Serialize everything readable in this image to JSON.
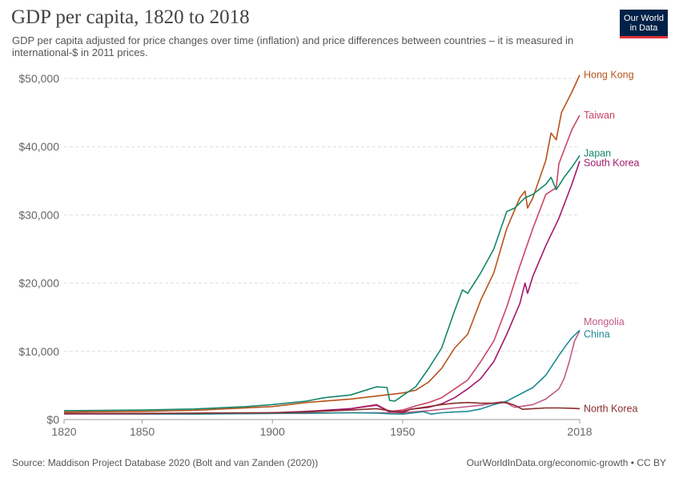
{
  "header": {
    "title": "GDP per capita, 1820 to 2018",
    "subtitle": "GDP per capita adjusted for price changes over time (inflation) and price differences between countries – it is measured in international-$ in 2011 prices.",
    "logo_line1": "Our World",
    "logo_line2": "in Data"
  },
  "footer": {
    "source": "Source: Maddison Project Database 2020 (Bolt and van Zanden (2020))",
    "link": "OurWorldInData.org/economic-growth • CC BY"
  },
  "chart_data": {
    "type": "line",
    "title": "GDP per capita, 1820 to 2018",
    "xlim": [
      1820,
      2018
    ],
    "ylim": [
      0,
      50000
    ],
    "x_ticks": [
      1820,
      1850,
      1900,
      1950,
      2018
    ],
    "y_ticks": [
      0,
      10000,
      20000,
      30000,
      40000,
      50000
    ],
    "y_tick_labels": [
      "$0",
      "$10,000",
      "$20,000",
      "$30,000",
      "$40,000",
      "$50,000"
    ],
    "grid": "horizontal dashed",
    "legend": "inline labels at right end",
    "series": [
      {
        "name": "Hong Kong",
        "color": "#b8521c",
        "points": [
          [
            1820,
            1100
          ],
          [
            1850,
            1200
          ],
          [
            1870,
            1350
          ],
          [
            1900,
            1900
          ],
          [
            1913,
            2500
          ],
          [
            1930,
            3000
          ],
          [
            1950,
            3900
          ],
          [
            1955,
            4300
          ],
          [
            1960,
            5500
          ],
          [
            1965,
            7500
          ],
          [
            1970,
            10500
          ],
          [
            1975,
            12500
          ],
          [
            1980,
            17500
          ],
          [
            1985,
            21500
          ],
          [
            1990,
            28000
          ],
          [
            1995,
            32500
          ],
          [
            1997,
            33500
          ],
          [
            1998,
            31000
          ],
          [
            2000,
            32500
          ],
          [
            2005,
            38000
          ],
          [
            2007,
            42000
          ],
          [
            2009,
            41000
          ],
          [
            2011,
            45000
          ],
          [
            2015,
            48000
          ],
          [
            2018,
            50500
          ]
        ]
      },
      {
        "name": "Taiwan",
        "color": "#c84563",
        "points": [
          [
            1820,
            800
          ],
          [
            1850,
            800
          ],
          [
            1870,
            850
          ],
          [
            1900,
            1000
          ],
          [
            1913,
            1100
          ],
          [
            1930,
            1600
          ],
          [
            1940,
            2200
          ],
          [
            1945,
            1200
          ],
          [
            1950,
            1400
          ],
          [
            1955,
            2000
          ],
          [
            1960,
            2500
          ],
          [
            1965,
            3200
          ],
          [
            1970,
            4500
          ],
          [
            1975,
            5800
          ],
          [
            1980,
            8500
          ],
          [
            1985,
            11500
          ],
          [
            1990,
            16500
          ],
          [
            1995,
            22500
          ],
          [
            2000,
            28000
          ],
          [
            2005,
            33000
          ],
          [
            2009,
            34000
          ],
          [
            2010,
            37500
          ],
          [
            2015,
            42500
          ],
          [
            2018,
            44600
          ]
        ]
      },
      {
        "name": "Japan",
        "color": "#14876b",
        "points": [
          [
            1820,
            1300
          ],
          [
            1850,
            1400
          ],
          [
            1870,
            1550
          ],
          [
            1890,
            1900
          ],
          [
            1900,
            2200
          ],
          [
            1913,
            2700
          ],
          [
            1920,
            3200
          ],
          [
            1930,
            3600
          ],
          [
            1935,
            4200
          ],
          [
            1940,
            4800
          ],
          [
            1944,
            4700
          ],
          [
            1945,
            2800
          ],
          [
            1947,
            2700
          ],
          [
            1950,
            3500
          ],
          [
            1955,
            4800
          ],
          [
            1960,
            7500
          ],
          [
            1965,
            10500
          ],
          [
            1970,
            16000
          ],
          [
            1973,
            19000
          ],
          [
            1975,
            18500
          ],
          [
            1980,
            21500
          ],
          [
            1985,
            25000
          ],
          [
            1990,
            30500
          ],
          [
            1993,
            31000
          ],
          [
            1997,
            32500
          ],
          [
            2000,
            33000
          ],
          [
            2005,
            34500
          ],
          [
            2007,
            35500
          ],
          [
            2009,
            33700
          ],
          [
            2012,
            35500
          ],
          [
            2015,
            37000
          ],
          [
            2018,
            38700
          ]
        ]
      },
      {
        "name": "South Korea",
        "color": "#a3186c",
        "points": [
          [
            1820,
            900
          ],
          [
            1850,
            900
          ],
          [
            1870,
            900
          ],
          [
            1900,
            1000
          ],
          [
            1913,
            1200
          ],
          [
            1930,
            1600
          ],
          [
            1940,
            2100
          ],
          [
            1945,
            1100
          ],
          [
            1950,
            1200
          ],
          [
            1953,
            1500
          ],
          [
            1960,
            1800
          ],
          [
            1965,
            2300
          ],
          [
            1970,
            3200
          ],
          [
            1975,
            4500
          ],
          [
            1980,
            6000
          ],
          [
            1985,
            8500
          ],
          [
            1990,
            12500
          ],
          [
            1995,
            17000
          ],
          [
            1997,
            20000
          ],
          [
            1998,
            18500
          ],
          [
            2000,
            21000
          ],
          [
            2005,
            25500
          ],
          [
            2010,
            29500
          ],
          [
            2015,
            34500
          ],
          [
            2018,
            37900
          ]
        ]
      },
      {
        "name": "Mongolia",
        "color": "#c05a86",
        "points": [
          [
            1820,
            800
          ],
          [
            1850,
            800
          ],
          [
            1900,
            900
          ],
          [
            1913,
            900
          ],
          [
            1930,
            1000
          ],
          [
            1950,
            1000
          ],
          [
            1960,
            1300
          ],
          [
            1970,
            1700
          ],
          [
            1980,
            2100
          ],
          [
            1988,
            2600
          ],
          [
            1990,
            2400
          ],
          [
            1993,
            1800
          ],
          [
            1995,
            1900
          ],
          [
            2000,
            2200
          ],
          [
            2005,
            3000
          ],
          [
            2010,
            4500
          ],
          [
            2012,
            6000
          ],
          [
            2014,
            8500
          ],
          [
            2016,
            11500
          ],
          [
            2018,
            13000
          ]
        ]
      },
      {
        "name": "China",
        "color": "#1d8a95",
        "points": [
          [
            1820,
            900
          ],
          [
            1850,
            850
          ],
          [
            1870,
            800
          ],
          [
            1900,
            900
          ],
          [
            1913,
            950
          ],
          [
            1930,
            1000
          ],
          [
            1940,
            950
          ],
          [
            1945,
            850
          ],
          [
            1950,
            800
          ],
          [
            1958,
            1150
          ],
          [
            1961,
            800
          ],
          [
            1965,
            1000
          ],
          [
            1970,
            1100
          ],
          [
            1975,
            1200
          ],
          [
            1980,
            1550
          ],
          [
            1985,
            2200
          ],
          [
            1990,
            2700
          ],
          [
            1995,
            3700
          ],
          [
            2000,
            4700
          ],
          [
            2005,
            6500
          ],
          [
            2010,
            9400
          ],
          [
            2013,
            11000
          ],
          [
            2015,
            12000
          ],
          [
            2018,
            13100
          ]
        ]
      },
      {
        "name": "North Korea",
        "color": "#8b2c2c",
        "points": [
          [
            1820,
            900
          ],
          [
            1850,
            900
          ],
          [
            1900,
            1000
          ],
          [
            1913,
            1100
          ],
          [
            1930,
            1400
          ],
          [
            1940,
            1600
          ],
          [
            1945,
            1300
          ],
          [
            1950,
            1000
          ],
          [
            1953,
            1500
          ],
          [
            1960,
            1900
          ],
          [
            1965,
            2200
          ],
          [
            1970,
            2400
          ],
          [
            1975,
            2500
          ],
          [
            1980,
            2400
          ],
          [
            1985,
            2400
          ],
          [
            1990,
            2500
          ],
          [
            1993,
            2100
          ],
          [
            1996,
            1500
          ],
          [
            2000,
            1600
          ],
          [
            2005,
            1700
          ],
          [
            2010,
            1700
          ],
          [
            2015,
            1650
          ],
          [
            2018,
            1600
          ]
        ]
      }
    ],
    "label_positions_value": [
      50500,
      44600,
      39000,
      37600,
      14300,
      12500,
      1600
    ]
  }
}
